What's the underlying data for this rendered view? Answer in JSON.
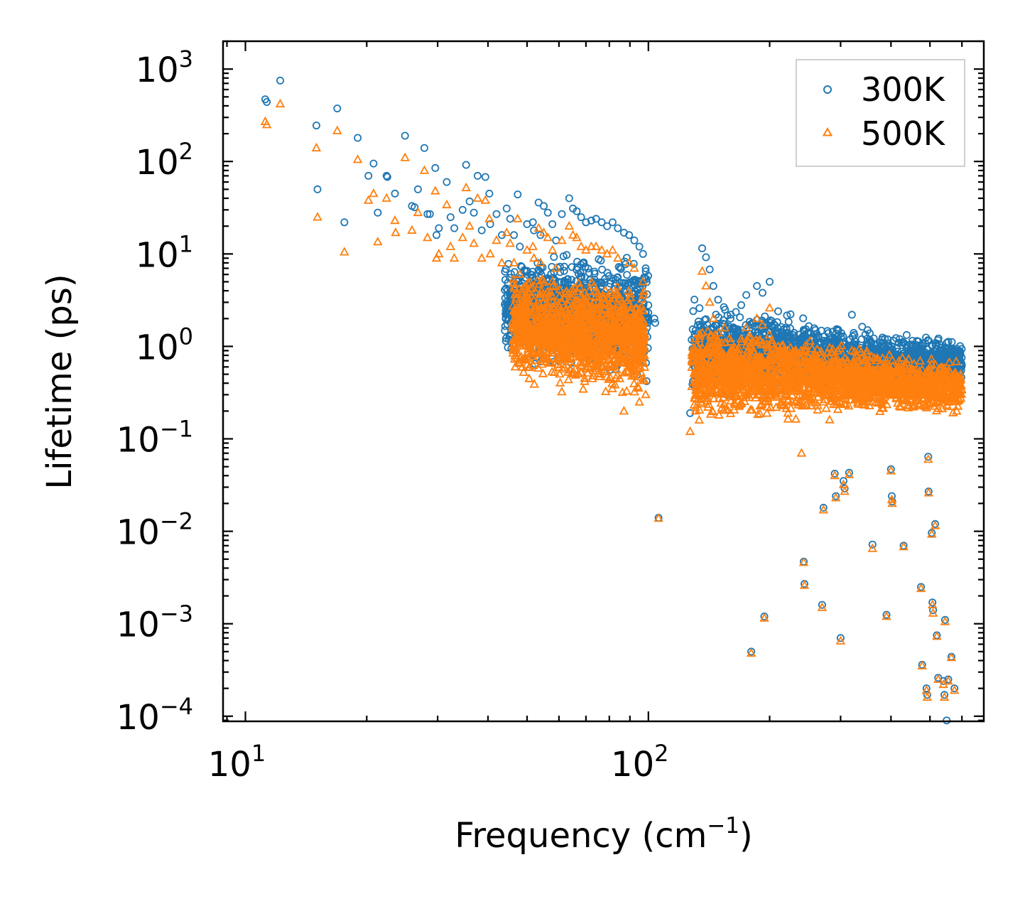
{
  "chart_data": {
    "type": "scatter",
    "title": "",
    "xlabel_text": "Frequency (cm",
    "xlabel_sup": "−1",
    "xlabel_close": ")",
    "ylabel": "Lifetime (ps)",
    "x_scale": "log",
    "y_scale": "log",
    "xlim": [
      8.8,
      680
    ],
    "ylim": [
      8.8e-05,
      2000
    ],
    "grid": false,
    "legend_position": "top-right",
    "x_ticks": [
      {
        "value": 10,
        "base": "10",
        "exp": "1"
      },
      {
        "value": 100,
        "base": "10",
        "exp": "2"
      }
    ],
    "y_ticks": [
      {
        "value": 1000,
        "base": "10",
        "exp": "3"
      },
      {
        "value": 100,
        "base": "10",
        "exp": "2"
      },
      {
        "value": 10,
        "base": "10",
        "exp": "1"
      },
      {
        "value": 1,
        "base": "10",
        "exp": "0"
      },
      {
        "value": 0.1,
        "base": "10",
        "exp": "−1"
      },
      {
        "value": 0.01,
        "base": "10",
        "exp": "−2"
      },
      {
        "value": 0.001,
        "base": "10",
        "exp": "−3"
      },
      {
        "value": 0.0001,
        "base": "10",
        "exp": "−4"
      }
    ],
    "series": [
      {
        "name": "300K",
        "marker": "circle",
        "color": "#1f77b4",
        "points": [
          [
            11.2,
            470
          ],
          [
            11.3,
            440
          ],
          [
            12.2,
            750
          ],
          [
            15.0,
            245
          ],
          [
            15.1,
            50
          ],
          [
            16.9,
            375
          ],
          [
            17.6,
            22
          ],
          [
            19.0,
            180
          ],
          [
            20.2,
            70
          ],
          [
            20.8,
            95
          ],
          [
            21.3,
            28
          ],
          [
            22.4,
            70
          ],
          [
            22.5,
            68
          ],
          [
            23.5,
            45
          ],
          [
            24.9,
            190
          ],
          [
            25.9,
            33
          ],
          [
            26.3,
            32
          ],
          [
            26.8,
            50
          ],
          [
            27.8,
            140
          ],
          [
            28.3,
            27
          ],
          [
            28.7,
            27
          ],
          [
            29.6,
            85
          ],
          [
            29.8,
            16
          ],
          [
            30.2,
            19
          ],
          [
            31.6,
            60
          ],
          [
            32.3,
            25
          ],
          [
            33.0,
            19
          ],
          [
            34.6,
            30
          ],
          [
            35.3,
            92
          ],
          [
            36.0,
            37
          ],
          [
            36.9,
            28
          ],
          [
            37.7,
            70
          ],
          [
            38.6,
            18
          ],
          [
            39.4,
            68
          ],
          [
            40.3,
            45
          ],
          [
            40.5,
            21
          ],
          [
            42.0,
            27
          ],
          [
            43.3,
            16
          ],
          [
            44.5,
            31
          ],
          [
            45.4,
            24
          ],
          [
            46.4,
            16
          ],
          [
            47.4,
            44
          ],
          [
            48.0,
            12
          ],
          [
            50.0,
            21
          ],
          [
            51.7,
            22
          ],
          [
            52.0,
            18
          ],
          [
            53.4,
            36
          ],
          [
            54.0,
            16
          ],
          [
            55.0,
            33
          ],
          [
            56.3,
            28
          ],
          [
            57.8,
            21
          ],
          [
            59.0,
            14
          ],
          [
            61.0,
            27
          ],
          [
            63.6,
            40
          ],
          [
            65.0,
            31
          ],
          [
            66.4,
            29
          ],
          [
            68.1,
            25
          ],
          [
            70.0,
            22
          ],
          [
            72.2,
            23
          ],
          [
            74.2,
            24
          ],
          [
            76.6,
            22
          ],
          [
            79.0,
            20
          ],
          [
            81.5,
            22
          ],
          [
            84.0,
            19
          ],
          [
            87.0,
            17
          ],
          [
            89.6,
            16
          ],
          [
            92.3,
            14
          ],
          [
            95.0,
            12
          ],
          [
            97.0,
            10
          ],
          [
            98.5,
            7
          ],
          [
            99.0,
            0.42
          ],
          [
            103.5,
            2.0
          ],
          [
            104.0,
            1.8
          ],
          [
            106.0,
            0.014
          ],
          [
            127.0,
            0.19
          ],
          [
            131.0,
            0.35
          ],
          [
            136.0,
            11.5
          ],
          [
            139.0,
            9.2
          ],
          [
            142.0,
            6.8
          ],
          [
            145.0,
            4.5
          ],
          [
            149.0,
            3.2
          ],
          [
            155.0,
            2.5
          ],
          [
            160.0,
            2.0
          ],
          [
            170.0,
            2.8
          ],
          [
            175.0,
            3.6
          ],
          [
            180.0,
            0.0005
          ],
          [
            186.0,
            4.5
          ],
          [
            192.0,
            3.8
          ],
          [
            194.0,
            0.0012
          ],
          [
            200.0,
            5.0
          ],
          [
            210.0,
            2.4
          ],
          [
            220.0,
            1.6
          ],
          [
            230.0,
            1.4
          ],
          [
            240.0,
            1.0
          ],
          [
            243.0,
            0.0047
          ],
          [
            244.0,
            0.0027
          ],
          [
            260.0,
            1.5
          ],
          [
            270.0,
            0.0016
          ],
          [
            272.0,
            0.018
          ],
          [
            290.0,
            0.042
          ],
          [
            292.0,
            0.024
          ],
          [
            300.0,
            0.0007
          ],
          [
            305.0,
            0.035
          ],
          [
            307.0,
            0.029
          ],
          [
            315.0,
            0.043
          ],
          [
            320.0,
            2.2
          ],
          [
            350.0,
            1.5
          ],
          [
            360.0,
            0.0072
          ],
          [
            370.0,
            0.9
          ],
          [
            390.0,
            0.00125
          ],
          [
            400.0,
            0.047
          ],
          [
            402.0,
            0.024
          ],
          [
            403.0,
            0.021
          ],
          [
            430.0,
            0.007
          ],
          [
            450.0,
            0.8
          ],
          [
            475.0,
            0.0025
          ],
          [
            478.0,
            0.00036
          ],
          [
            490.0,
            0.0002
          ],
          [
            492.0,
            0.00017
          ],
          [
            495.0,
            0.064
          ],
          [
            496.0,
            0.027
          ],
          [
            505.0,
            0.0096
          ],
          [
            507.0,
            0.0017
          ],
          [
            509.0,
            0.0014
          ],
          [
            515.0,
            0.012
          ],
          [
            520.0,
            0.00075
          ],
          [
            524.0,
            0.00026
          ],
          [
            540.0,
            0.00024
          ],
          [
            543.0,
            0.00017
          ],
          [
            545.0,
            0.0011
          ],
          [
            550.0,
            9e-05
          ],
          [
            555.0,
            0.00025
          ],
          [
            565.0,
            0.00044
          ],
          [
            575.0,
            0.0002
          ],
          [
            590.0,
            0.9
          ]
        ]
      },
      {
        "name": "500K",
        "marker": "triangle",
        "color": "#ff7f0e",
        "points": [
          [
            11.2,
            270
          ],
          [
            11.3,
            250
          ],
          [
            12.2,
            420
          ],
          [
            15.0,
            140
          ],
          [
            15.1,
            25
          ],
          [
            16.9,
            215
          ],
          [
            17.6,
            10.5
          ],
          [
            19.0,
            105
          ],
          [
            20.2,
            38
          ],
          [
            20.8,
            45
          ],
          [
            21.3,
            13.5
          ],
          [
            22.4,
            40
          ],
          [
            23.5,
            23
          ],
          [
            23.6,
            17
          ],
          [
            24.9,
            110
          ],
          [
            25.9,
            18
          ],
          [
            26.8,
            28
          ],
          [
            27.8,
            80
          ],
          [
            28.3,
            15
          ],
          [
            29.6,
            48
          ],
          [
            29.8,
            9
          ],
          [
            30.2,
            10
          ],
          [
            31.6,
            34
          ],
          [
            32.3,
            12
          ],
          [
            33.0,
            9
          ],
          [
            34.6,
            15
          ],
          [
            35.3,
            52
          ],
          [
            36.0,
            20
          ],
          [
            36.9,
            13
          ],
          [
            37.7,
            40
          ],
          [
            38.6,
            9
          ],
          [
            39.4,
            38
          ],
          [
            40.3,
            24
          ],
          [
            40.5,
            10
          ],
          [
            42.0,
            14
          ],
          [
            43.3,
            8
          ],
          [
            44.5,
            17
          ],
          [
            45.4,
            13
          ],
          [
            46.4,
            8
          ],
          [
            47.4,
            24
          ],
          [
            48.0,
            6
          ],
          [
            50.0,
            11
          ],
          [
            51.7,
            12
          ],
          [
            52.0,
            9
          ],
          [
            53.4,
            19
          ],
          [
            54.0,
            8
          ],
          [
            55.0,
            17
          ],
          [
            56.3,
            15
          ],
          [
            57.8,
            11
          ],
          [
            59.0,
            7
          ],
          [
            61.0,
            14
          ],
          [
            63.6,
            20
          ],
          [
            65.0,
            16
          ],
          [
            66.4,
            15
          ],
          [
            68.1,
            12
          ],
          [
            70.0,
            11
          ],
          [
            72.2,
            12
          ],
          [
            74.2,
            12
          ],
          [
            76.6,
            11
          ],
          [
            79.0,
            10
          ],
          [
            81.5,
            11
          ],
          [
            84.0,
            9
          ],
          [
            87.0,
            0.2
          ],
          [
            89.6,
            8
          ],
          [
            92.3,
            7
          ],
          [
            95.0,
            0.25
          ],
          [
            97.0,
            5
          ],
          [
            98.5,
            0.3
          ],
          [
            106.0,
            0.0138
          ],
          [
            127.0,
            0.12
          ],
          [
            131.0,
            0.2
          ],
          [
            136.0,
            6.5
          ],
          [
            139.0,
            4.5
          ],
          [
            142.0,
            3.0
          ],
          [
            145.0,
            2.0
          ],
          [
            149.0,
            1.4
          ],
          [
            155.0,
            1.1
          ],
          [
            160.0,
            0.9
          ],
          [
            170.0,
            1.2
          ],
          [
            175.0,
            1.6
          ],
          [
            180.0,
            0.00048
          ],
          [
            186.0,
            2.0
          ],
          [
            192.0,
            1.7
          ],
          [
            194.0,
            0.00115
          ],
          [
            200.0,
            2.6
          ],
          [
            210.0,
            1.0
          ],
          [
            220.0,
            0.6
          ],
          [
            230.0,
            0.5
          ],
          [
            240.0,
            0.07
          ],
          [
            243.0,
            0.0046
          ],
          [
            244.0,
            0.0026
          ],
          [
            260.0,
            0.6
          ],
          [
            270.0,
            0.0015
          ],
          [
            272.0,
            0.017
          ],
          [
            290.0,
            0.04
          ],
          [
            292.0,
            0.023
          ],
          [
            300.0,
            0.00065
          ],
          [
            305.0,
            0.032
          ],
          [
            307.0,
            0.027
          ],
          [
            315.0,
            0.041
          ],
          [
            320.0,
            0.9
          ],
          [
            350.0,
            0.6
          ],
          [
            360.0,
            0.0065
          ],
          [
            370.0,
            0.4
          ],
          [
            390.0,
            0.0012
          ],
          [
            400.0,
            0.045
          ],
          [
            402.0,
            0.022
          ],
          [
            403.0,
            0.02
          ],
          [
            430.0,
            0.0068
          ],
          [
            450.0,
            0.35
          ],
          [
            475.0,
            0.0024
          ],
          [
            478.0,
            0.00035
          ],
          [
            490.0,
            0.00019
          ],
          [
            492.0,
            0.00016
          ],
          [
            495.0,
            0.06
          ],
          [
            496.0,
            0.026
          ],
          [
            505.0,
            0.0093
          ],
          [
            507.0,
            0.0016
          ],
          [
            509.0,
            0.0013
          ],
          [
            515.0,
            0.0115
          ],
          [
            520.0,
            0.00073
          ],
          [
            524.0,
            0.00025
          ],
          [
            540.0,
            0.00022
          ],
          [
            543.0,
            0.00016
          ],
          [
            545.0,
            0.00105
          ],
          [
            555.0,
            0.00024
          ],
          [
            565.0,
            0.00043
          ],
          [
            575.0,
            0.00019
          ],
          [
            590.0,
            0.4
          ]
        ]
      }
    ],
    "dense_bands": [
      {
        "series": "300K",
        "from": 44,
        "to": 100,
        "lo_start": 0.6,
        "hi_start": 12,
        "lo_end": 0.38,
        "hi_end": 12,
        "count": 1300
      },
      {
        "series": "300K",
        "from": 128,
        "to": 600,
        "lo_start": 0.25,
        "hi_start": 3.5,
        "lo_end": 0.35,
        "hi_end": 1.3,
        "count": 1800
      },
      {
        "series": "500K",
        "from": 46,
        "to": 98,
        "lo_start": 0.35,
        "hi_start": 8,
        "lo_end": 0.22,
        "hi_end": 6,
        "count": 1300
      },
      {
        "series": "500K",
        "from": 128,
        "to": 600,
        "lo_start": 0.13,
        "hi_start": 2.2,
        "lo_end": 0.18,
        "hi_end": 0.7,
        "count": 2000
      }
    ]
  }
}
